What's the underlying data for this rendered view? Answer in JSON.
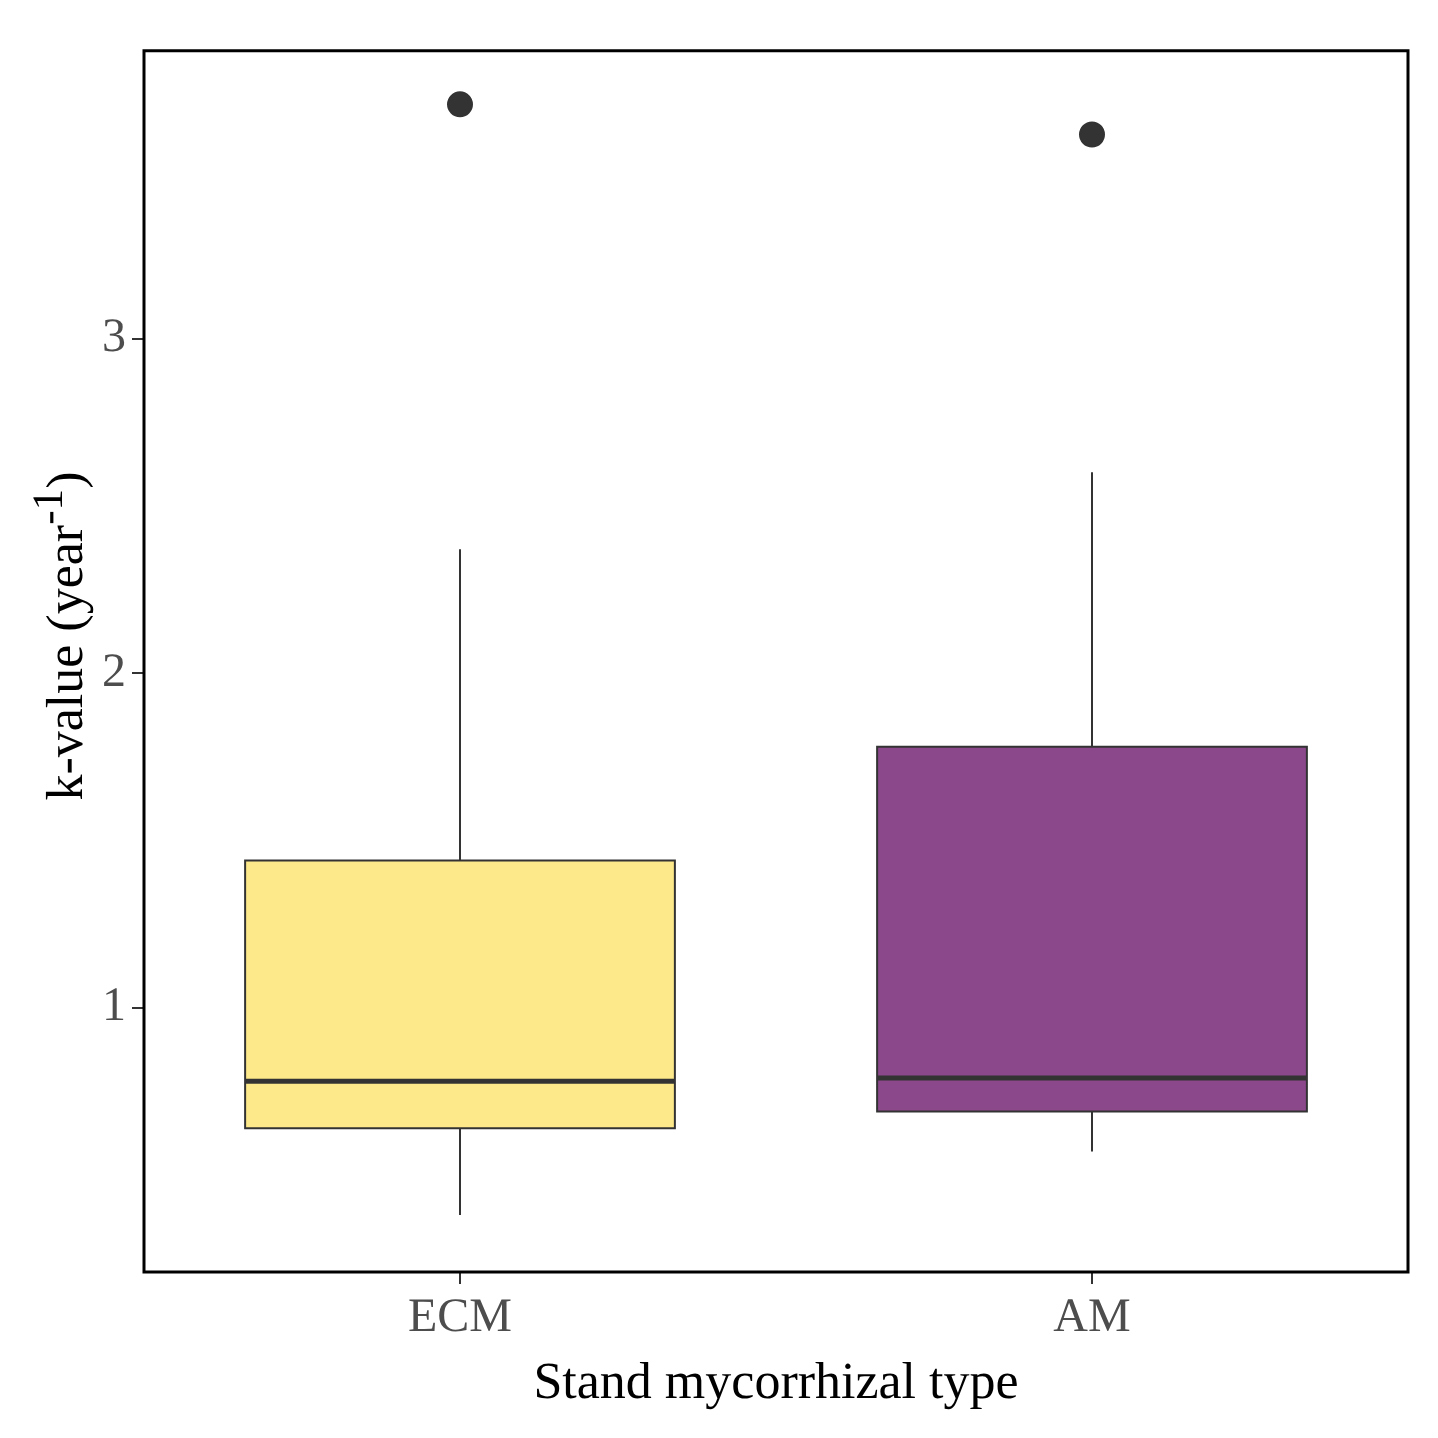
{
  "chart_data": {
    "type": "box",
    "categories": [
      "ECM",
      "AM"
    ],
    "boxes": [
      {
        "low": 0.38,
        "q1": 0.64,
        "median": 0.78,
        "q3": 1.44,
        "high": 2.37,
        "outliers": [
          3.7
        ]
      },
      {
        "low": 0.57,
        "q1": 0.69,
        "median": 0.79,
        "q3": 1.78,
        "high": 2.6,
        "outliers": [
          3.61
        ]
      }
    ],
    "colors": [
      "#fde98a",
      "#8b488b"
    ],
    "ylim": [
      0.21,
      3.86
    ],
    "yticks": [
      1,
      2,
      3
    ],
    "xlabel": "Stand mycorrhizal type",
    "ylabel": "k-value (year$^{-1}$)",
    "grid": false,
    "legend": false
  }
}
